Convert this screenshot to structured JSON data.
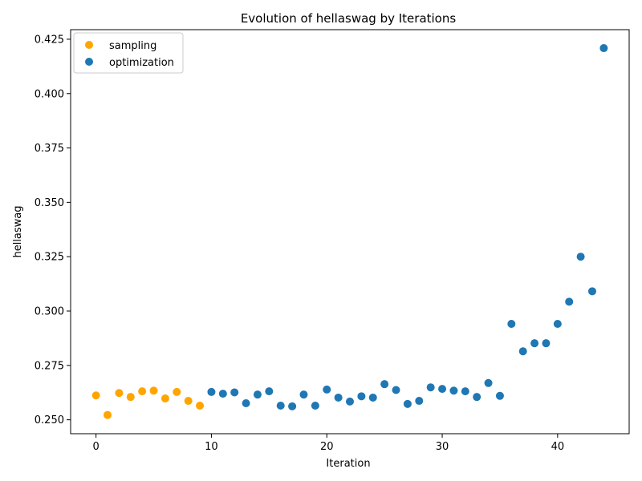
{
  "chart_data": {
    "type": "scatter",
    "title": "Evolution of hellaswag by Iterations",
    "xlabel": "Iteration",
    "ylabel": "hellaswag",
    "xlim": [
      -2.2,
      46.2
    ],
    "ylim": [
      0.2436,
      0.4294
    ],
    "xticks": [
      0,
      10,
      20,
      30,
      40
    ],
    "yticks": [
      0.25,
      0.275,
      0.3,
      0.325,
      0.35,
      0.375,
      0.4,
      0.425
    ],
    "legend_position": "top-left",
    "series": [
      {
        "name": "sampling",
        "color": "#ffa500",
        "x": [
          0,
          1,
          2,
          3,
          4,
          5,
          6,
          7,
          8,
          9
        ],
        "y": [
          0.2612,
          0.2522,
          0.2623,
          0.2605,
          0.2631,
          0.2634,
          0.2598,
          0.2628,
          0.2587,
          0.2565
        ]
      },
      {
        "name": "optimization",
        "color": "#1f77b4",
        "x": [
          10,
          11,
          12,
          13,
          14,
          15,
          16,
          17,
          18,
          19,
          20,
          21,
          22,
          23,
          24,
          25,
          26,
          27,
          28,
          29,
          30,
          31,
          32,
          33,
          34,
          35,
          36,
          37,
          38,
          39,
          40,
          41,
          42,
          43,
          44
        ],
        "y": [
          0.2628,
          0.262,
          0.2626,
          0.2576,
          0.2616,
          0.2631,
          0.2565,
          0.2562,
          0.2616,
          0.2565,
          0.2639,
          0.2602,
          0.2584,
          0.2608,
          0.2602,
          0.2664,
          0.2637,
          0.2573,
          0.2587,
          0.2649,
          0.2642,
          0.2634,
          0.2631,
          0.2605,
          0.2669,
          0.261,
          0.2941,
          0.2815,
          0.2852,
          0.2852,
          0.2941,
          0.3043,
          0.325,
          0.3091,
          0.4209
        ]
      }
    ]
  }
}
